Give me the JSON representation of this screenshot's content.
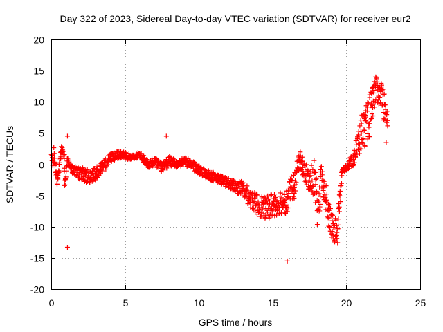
{
  "chart_data": {
    "type": "scatter",
    "title": "Day 322 of 2023, Sidereal Day-to-day VTEC variation (SDTVAR) for receiver eur2",
    "xlabel": "GPS time / hours",
    "ylabel": "SDTVAR / TECUs",
    "xlim": [
      0,
      25
    ],
    "ylim": [
      -20,
      20
    ],
    "xticks": [
      0,
      5,
      10,
      15,
      20,
      25
    ],
    "yticks": [
      -20,
      -15,
      -10,
      -5,
      0,
      5,
      10,
      15,
      20
    ],
    "grid": true,
    "marker": "+",
    "color": "#ff0000",
    "series": [
      {
        "name": "SDTVAR",
        "trace": [
          {
            "x": 0.0,
            "y": 0.5,
            "spread": 3.0
          },
          {
            "x": 0.2,
            "y": 1.5,
            "spread": 2.5
          },
          {
            "x": 0.4,
            "y": -3.0,
            "spread": 1.2
          },
          {
            "x": 0.7,
            "y": 2.5,
            "spread": 1.0
          },
          {
            "x": 0.9,
            "y": 1.0,
            "spread": 1.5
          },
          {
            "x": 0.9,
            "y": -3.5,
            "spread": 1.0
          },
          {
            "x": 1.1,
            "y": 0.5,
            "spread": 1.2
          },
          {
            "x": 1.5,
            "y": -1.0,
            "spread": 1.5
          },
          {
            "x": 2.0,
            "y": -1.5,
            "spread": 2.0
          },
          {
            "x": 2.5,
            "y": -2.0,
            "spread": 2.5
          },
          {
            "x": 3.0,
            "y": -1.5,
            "spread": 2.0
          },
          {
            "x": 3.5,
            "y": -0.5,
            "spread": 2.0
          },
          {
            "x": 4.0,
            "y": 1.0,
            "spread": 1.5
          },
          {
            "x": 4.5,
            "y": 1.5,
            "spread": 1.2
          },
          {
            "x": 5.0,
            "y": 1.5,
            "spread": 1.2
          },
          {
            "x": 5.5,
            "y": 1.0,
            "spread": 1.0
          },
          {
            "x": 6.0,
            "y": 1.5,
            "spread": 1.0
          },
          {
            "x": 6.6,
            "y": 0.0,
            "spread": 1.2
          },
          {
            "x": 7.0,
            "y": 0.5,
            "spread": 1.2
          },
          {
            "x": 7.5,
            "y": -0.5,
            "spread": 1.5
          },
          {
            "x": 8.0,
            "y": 0.5,
            "spread": 1.5
          },
          {
            "x": 8.5,
            "y": 0.0,
            "spread": 1.2
          },
          {
            "x": 9.0,
            "y": 0.5,
            "spread": 1.2
          },
          {
            "x": 9.5,
            "y": 0.0,
            "spread": 1.5
          },
          {
            "x": 10.0,
            "y": -1.0,
            "spread": 1.5
          },
          {
            "x": 10.5,
            "y": -1.5,
            "spread": 1.5
          },
          {
            "x": 11.0,
            "y": -2.0,
            "spread": 1.5
          },
          {
            "x": 11.5,
            "y": -2.5,
            "spread": 1.5
          },
          {
            "x": 12.0,
            "y": -3.0,
            "spread": 1.5
          },
          {
            "x": 12.5,
            "y": -3.5,
            "spread": 2.0
          },
          {
            "x": 13.0,
            "y": -4.0,
            "spread": 2.5
          },
          {
            "x": 13.5,
            "y": -5.5,
            "spread": 3.0
          },
          {
            "x": 14.0,
            "y": -6.5,
            "spread": 3.5
          },
          {
            "x": 14.5,
            "y": -7.0,
            "spread": 3.5
          },
          {
            "x": 15.0,
            "y": -6.5,
            "spread": 4.0
          },
          {
            "x": 15.5,
            "y": -6.0,
            "spread": 4.0
          },
          {
            "x": 16.0,
            "y": -6.0,
            "spread": 4.0
          },
          {
            "x": 16.2,
            "y": -4.0,
            "spread": 4.0
          },
          {
            "x": 16.5,
            "y": -3.5,
            "spread": 4.0
          },
          {
            "x": 16.8,
            "y": 1.0,
            "spread": 3.0
          },
          {
            "x": 17.5,
            "y": -3.0,
            "spread": 4.0
          },
          {
            "x": 17.8,
            "y": -2.0,
            "spread": 6.0
          },
          {
            "x": 18.1,
            "y": -8.0,
            "spread": 6.0
          },
          {
            "x": 18.3,
            "y": -2.0,
            "spread": 4.0
          },
          {
            "x": 19.0,
            "y": -10.0,
            "spread": 5.0
          },
          {
            "x": 19.4,
            "y": -11.0,
            "spread": 4.0
          },
          {
            "x": 19.7,
            "y": -1.0,
            "spread": 0.5
          },
          {
            "x": 20.0,
            "y": -0.5,
            "spread": 1.0
          },
          {
            "x": 20.5,
            "y": 1.0,
            "spread": 2.5
          },
          {
            "x": 21.0,
            "y": 5.0,
            "spread": 6.0
          },
          {
            "x": 21.3,
            "y": 6.0,
            "spread": 6.0
          },
          {
            "x": 21.6,
            "y": 8.0,
            "spread": 7.0
          },
          {
            "x": 22.0,
            "y": 12.0,
            "spread": 4.0
          },
          {
            "x": 22.4,
            "y": 10.0,
            "spread": 6.0
          },
          {
            "x": 22.8,
            "y": 8.0,
            "spread": 5.0
          }
        ],
        "outliers": [
          {
            "x": 1.1,
            "y": -13.3
          },
          {
            "x": 1.1,
            "y": 4.5
          },
          {
            "x": 7.8,
            "y": 4.5
          },
          {
            "x": 16.0,
            "y": -15.5
          },
          {
            "x": 19.6,
            "y": -6.0
          },
          {
            "x": 22.7,
            "y": 3.5
          }
        ]
      }
    ]
  }
}
